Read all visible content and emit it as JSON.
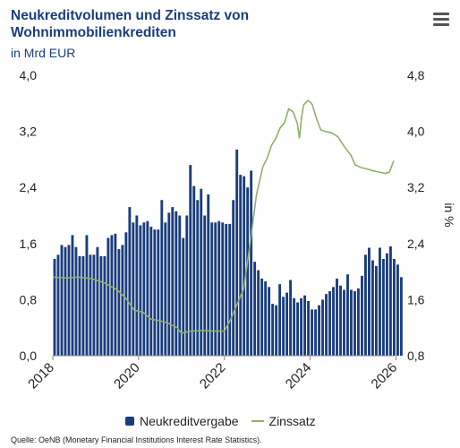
{
  "title": "Neukreditvolumen und Zinssatz von Wohnimmobilienkrediten",
  "subtitle": "in Mrd EUR",
  "source": "Quelle: OeNB (Monetary Financial Institutions Interest Rate Statistics).",
  "colors": {
    "bar": "#1a3d7c",
    "line": "#8fb06b",
    "title": "#1a3d7c"
  },
  "chart_data": {
    "type": "bar+line",
    "x_ticks": [
      "2018",
      "2020",
      "2022",
      "2024",
      "2026"
    ],
    "x_range": [
      2018.0,
      2025.95
    ],
    "y_left": {
      "ticks": [
        "4,0",
        "3,2",
        "2,4",
        "1,6",
        "0,8",
        "0,0"
      ],
      "range": [
        0,
        4.0
      ]
    },
    "y_right": {
      "label": "in %",
      "ticks": [
        "4,8",
        "4,0",
        "3,2",
        "2,4",
        "1,6",
        "0,8"
      ],
      "range": [
        0.8,
        4.8
      ]
    },
    "legend": [
      "Neukreditvergabe",
      "Zinssatz"
    ],
    "legend_position": "bottom",
    "grid": false,
    "series": [
      {
        "name": "Neukreditvergabe",
        "type": "bar",
        "start": "2018-01",
        "frequency": "monthly",
        "values": [
          1.38,
          1.44,
          1.58,
          1.55,
          1.58,
          1.72,
          1.55,
          1.42,
          1.42,
          1.72,
          1.44,
          1.44,
          1.55,
          1.42,
          1.42,
          1.68,
          1.72,
          1.74,
          1.52,
          1.58,
          1.76,
          2.12,
          1.9,
          2.0,
          1.86,
          1.9,
          1.92,
          1.84,
          1.8,
          1.8,
          2.22,
          1.9,
          2.04,
          2.12,
          2.06,
          2.0,
          1.68,
          2.0,
          2.72,
          2.42,
          2.22,
          2.38,
          2.0,
          2.3,
          1.9,
          1.9,
          1.92,
          1.9,
          1.88,
          1.88,
          2.22,
          2.94,
          2.58,
          2.56,
          2.4,
          2.64,
          1.34,
          1.22,
          1.1,
          1.06,
          0.98,
          0.74,
          0.72,
          1.02,
          0.84,
          0.9,
          1.08,
          0.82,
          0.76,
          0.82,
          0.86,
          0.78,
          0.66,
          0.66,
          0.72,
          0.8,
          0.88,
          0.92,
          0.98,
          1.1,
          1.0,
          0.94,
          1.16,
          0.94,
          0.92,
          0.96,
          1.14,
          1.44,
          1.54,
          1.36,
          1.28,
          1.54,
          1.38,
          1.46,
          1.56,
          1.38,
          1.3,
          1.12
        ]
      },
      {
        "name": "Zinssatz",
        "type": "line",
        "x": [
          2018.0,
          2018.3,
          2018.6,
          2018.9,
          2019.2,
          2019.5,
          2019.7,
          2019.9,
          2020.1,
          2020.3,
          2020.5,
          2020.7,
          2020.9,
          2021.0,
          2021.2,
          2021.5,
          2021.8,
          2022.0,
          2022.15,
          2022.3,
          2022.45,
          2022.6,
          2022.75,
          2022.9,
          2023.0,
          2023.1,
          2023.2,
          2023.3,
          2023.4,
          2023.5,
          2023.6,
          2023.7,
          2023.75,
          2023.8,
          2023.85,
          2023.95,
          2024.0,
          2024.05,
          2024.15,
          2024.25,
          2024.35,
          2024.5,
          2024.65,
          2024.8,
          2024.95,
          2025.05,
          2025.2,
          2025.35,
          2025.45,
          2025.6,
          2025.75,
          2025.85,
          2025.95
        ],
        "y": [
          1.92,
          1.91,
          1.92,
          1.9,
          1.84,
          1.74,
          1.62,
          1.45,
          1.42,
          1.32,
          1.3,
          1.26,
          1.2,
          1.12,
          1.15,
          1.16,
          1.15,
          1.15,
          1.32,
          1.54,
          1.75,
          2.4,
          3.1,
          3.5,
          3.62,
          3.8,
          3.9,
          4.05,
          4.12,
          4.32,
          4.28,
          4.12,
          3.9,
          4.2,
          4.38,
          4.44,
          4.42,
          4.38,
          4.18,
          4.02,
          4.0,
          3.98,
          3.92,
          3.78,
          3.66,
          3.52,
          3.48,
          3.46,
          3.44,
          3.42,
          3.4,
          3.42,
          3.58
        ]
      }
    ]
  }
}
